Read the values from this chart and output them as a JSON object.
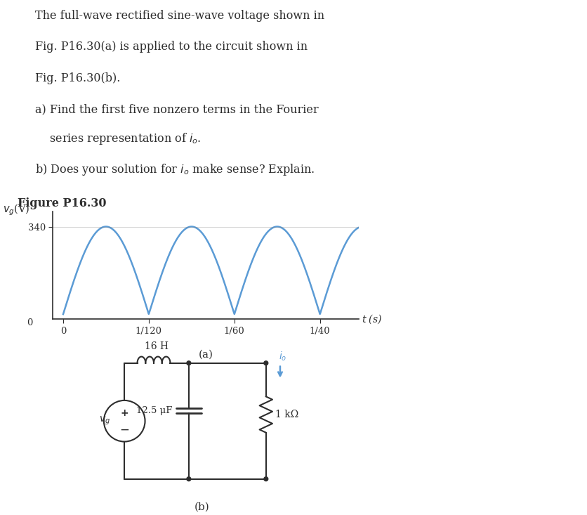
{
  "background_color": "#ffffff",
  "problem_text_lines": [
    "The full-wave rectified sine-wave voltage shown in",
    "Fig. P16.30(a) is applied to the circuit shown in",
    "Fig. P16.30(b).",
    "a) Find the first five nonzero terms in the Fourier",
    "    series representation of $i_o$.",
    "b) Does your solution for $i_o$ make sense? Explain."
  ],
  "figure_label": "Figure P16.30",
  "plot_ylabel": "$v_g$(V)",
  "plot_ytick_val": 340,
  "plot_xlabel": "$t$ (s)",
  "plot_xtick_labels": [
    "0",
    "1/120",
    "1/60",
    "1/40"
  ],
  "plot_amplitude": 340,
  "plot_color": "#5b9bd5",
  "subplot_label_a": "(a)",
  "subplot_label_b": "(b)",
  "circuit_label_inductor": "16 H",
  "circuit_label_capacitor": "12.5 μF",
  "circuit_label_resistor": "1 kΩ",
  "circuit_label_source": "$v_g$",
  "circuit_label_io": "$i_o$",
  "text_color": "#2d2d2d",
  "line_color": "#2d2d2d",
  "axis_color": "#808080",
  "line_width": 1.5
}
